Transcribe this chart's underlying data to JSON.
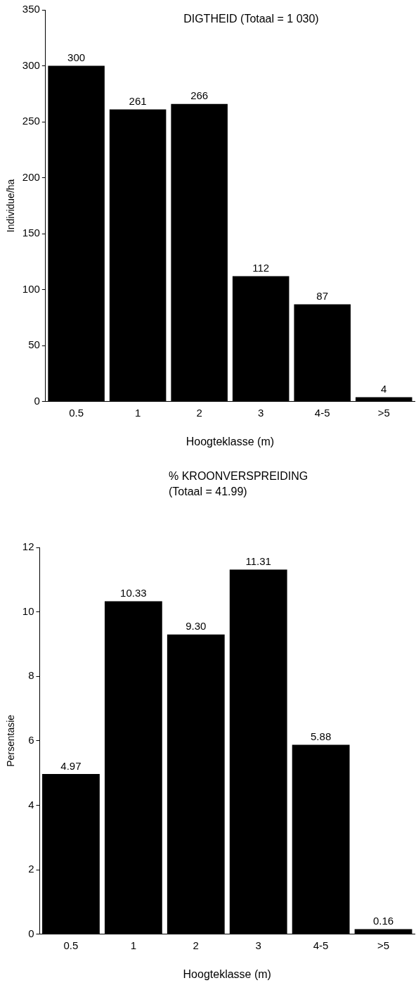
{
  "chart_data": [
    {
      "type": "bar",
      "title": "DIGTHEID (Totaal = 1 030)",
      "xlabel": "Hoogteklasse (m)",
      "ylabel": "Individue/ha",
      "categories": [
        "0.5",
        "1",
        "2",
        "3",
        "4-5",
        ">5"
      ],
      "values": [
        300,
        261,
        266,
        112,
        87,
        4
      ],
      "color": "#000000",
      "ylim": [
        0,
        350
      ],
      "yticks": [
        0,
        50,
        100,
        150,
        200,
        250,
        300,
        350
      ],
      "grid": false,
      "legend": false,
      "data_labels": true
    },
    {
      "type": "bar",
      "title": "% KROONVERSPREIDING",
      "subtitle": "(Totaal = 41.99)",
      "xlabel": "Hoogteklasse (m)",
      "ylabel": "Persentasie",
      "categories": [
        "0.5",
        "1",
        "2",
        "3",
        "4-5",
        ">5"
      ],
      "values": [
        4.97,
        10.33,
        9.3,
        11.31,
        5.88,
        0.16
      ],
      "value_labels": [
        "4.97",
        "10.33",
        "9.30",
        "11.31",
        "5.88",
        "0.16"
      ],
      "color": "#000000",
      "ylim": [
        0,
        12
      ],
      "yticks": [
        0,
        2,
        4,
        6,
        8,
        10,
        12
      ],
      "grid": false,
      "legend": false
    }
  ]
}
